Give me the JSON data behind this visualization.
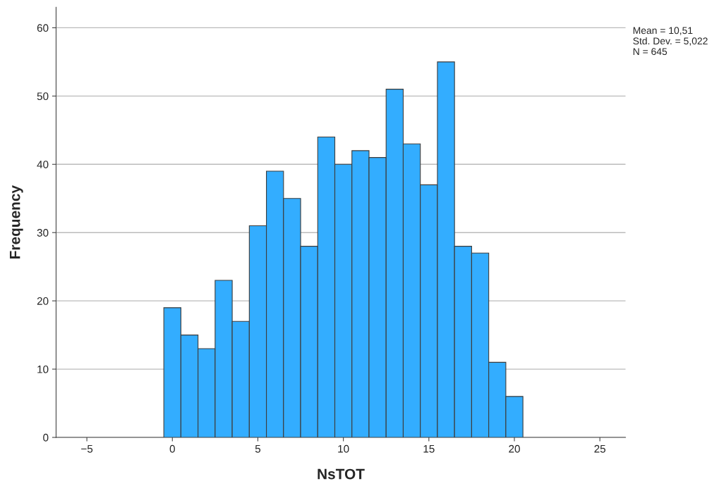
{
  "chart_data": {
    "type": "histogram",
    "xlabel": "NsTOT",
    "ylabel": "Frequency",
    "bins": [
      -0.5,
      0.5,
      1.5,
      2.5,
      3.5,
      4.5,
      5.5,
      6.5,
      7.5,
      8.5,
      9.5,
      10.5,
      11.5,
      12.5,
      13.5,
      14.5,
      15.5,
      16.5,
      17.5,
      18.5,
      19.5,
      20.5
    ],
    "values": [
      19,
      15,
      13,
      23,
      17,
      31,
      39,
      35,
      28,
      44,
      40,
      42,
      41,
      51,
      43,
      37,
      55,
      28,
      27,
      11,
      6
    ],
    "color": "#33adff",
    "xlim": [
      -6.8,
      26.5
    ],
    "xticks": [
      {
        "value": -5,
        "label": "−5"
      },
      0,
      5,
      10,
      15,
      20,
      25
    ],
    "ylim": [
      0,
      63
    ],
    "yticks": [
      0,
      10,
      20,
      30,
      40,
      50,
      60
    ],
    "grid": "y",
    "annotations": [
      "Mean = 10,51\nStd. Dev. = 5,022\nN = 645"
    ]
  }
}
